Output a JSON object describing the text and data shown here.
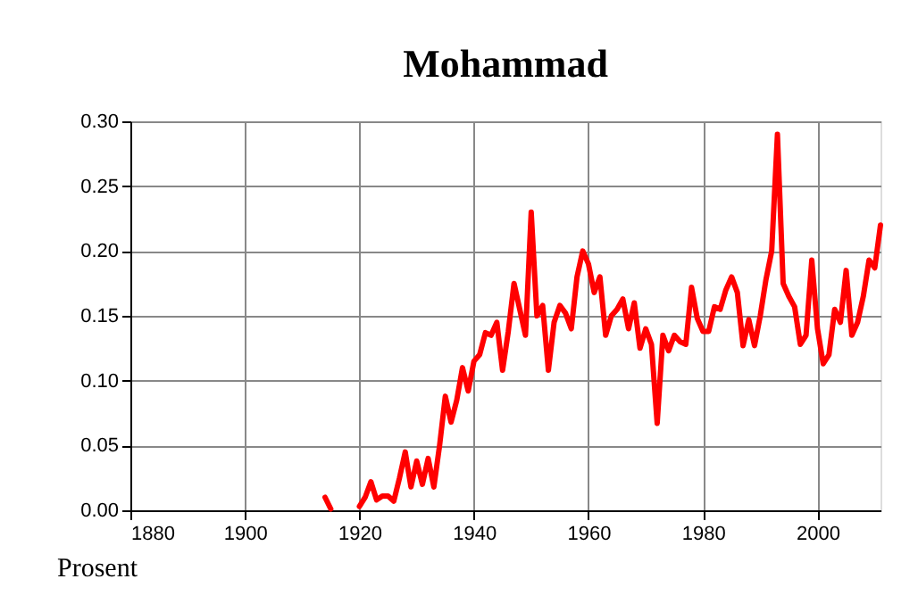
{
  "chart_data": {
    "type": "line",
    "title": "Mohammad",
    "x": [
      1914,
      1915,
      1916,
      1917,
      1918,
      1919,
      1920,
      1921,
      1922,
      1923,
      1924,
      1925,
      1926,
      1927,
      1928,
      1929,
      1930,
      1931,
      1932,
      1933,
      1934,
      1935,
      1936,
      1937,
      1938,
      1939,
      1940,
      1941,
      1942,
      1943,
      1944,
      1945,
      1946,
      1947,
      1948,
      1949,
      1950,
      1951,
      1952,
      1953,
      1954,
      1955,
      1956,
      1957,
      1958,
      1959,
      1960,
      1961,
      1962,
      1963,
      1964,
      1965,
      1966,
      1967,
      1968,
      1969,
      1970,
      1971,
      1972,
      1973,
      1974,
      1975,
      1976,
      1977,
      1978,
      1979,
      1980,
      1981,
      1982,
      1983,
      1984,
      1985,
      1986,
      1987,
      1988,
      1989,
      1990,
      1991,
      1992,
      1993,
      1994,
      1995,
      1996,
      1997,
      1998,
      1999,
      2000,
      2001,
      2002,
      2003,
      2004,
      2005,
      2006,
      2007,
      2008,
      2009,
      2010,
      2011
    ],
    "series": [
      {
        "color": "#ff0000",
        "values": [
          0.01,
          0.001,
          null,
          null,
          null,
          null,
          0.003,
          0.01,
          0.022,
          0.008,
          0.011,
          0.011,
          0.007,
          0.025,
          0.045,
          0.018,
          0.038,
          0.02,
          0.04,
          0.018,
          0.05,
          0.088,
          0.068,
          0.085,
          0.11,
          0.092,
          0.115,
          0.12,
          0.137,
          0.135,
          0.145,
          0.108,
          0.138,
          0.175,
          0.155,
          0.135,
          0.23,
          0.15,
          0.158,
          0.108,
          0.145,
          0.158,
          0.152,
          0.14,
          0.18,
          0.2,
          0.19,
          0.168,
          0.18,
          0.135,
          0.15,
          0.155,
          0.163,
          0.14,
          0.16,
          0.125,
          0.14,
          0.128,
          0.067,
          0.135,
          0.123,
          0.135,
          0.13,
          0.128,
          0.172,
          0.148,
          0.138,
          0.138,
          0.157,
          0.155,
          0.17,
          0.18,
          0.168,
          0.127,
          0.147,
          0.127,
          0.15,
          0.178,
          0.2,
          0.29,
          0.175,
          0.165,
          0.157,
          0.128,
          0.135,
          0.193,
          0.14,
          0.113,
          0.12,
          0.155,
          0.145,
          0.185,
          0.135,
          0.145,
          0.165,
          0.193,
          0.187,
          0.22
        ]
      }
    ],
    "xlim": [
      1880,
      2011
    ],
    "xticks": [
      1880,
      1900,
      1920,
      1940,
      1960,
      1980,
      2000
    ],
    "ylim": [
      0,
      0.3
    ],
    "yticks": [
      {
        "value": 0,
        "label": "0.00"
      },
      {
        "value": 0.05,
        "label": "0.05"
      },
      {
        "value": 0.1,
        "label": "0.10"
      },
      {
        "value": 0.15,
        "label": "0.15"
      },
      {
        "value": 0.2,
        "label": "0.20"
      },
      {
        "value": 0.25,
        "label": "0.25"
      },
      {
        "value": 0.3,
        "label": "0.30"
      }
    ],
    "grid": true,
    "line_style": "solid",
    "marker": "none",
    "annotations": [
      "Prosent"
    ]
  }
}
